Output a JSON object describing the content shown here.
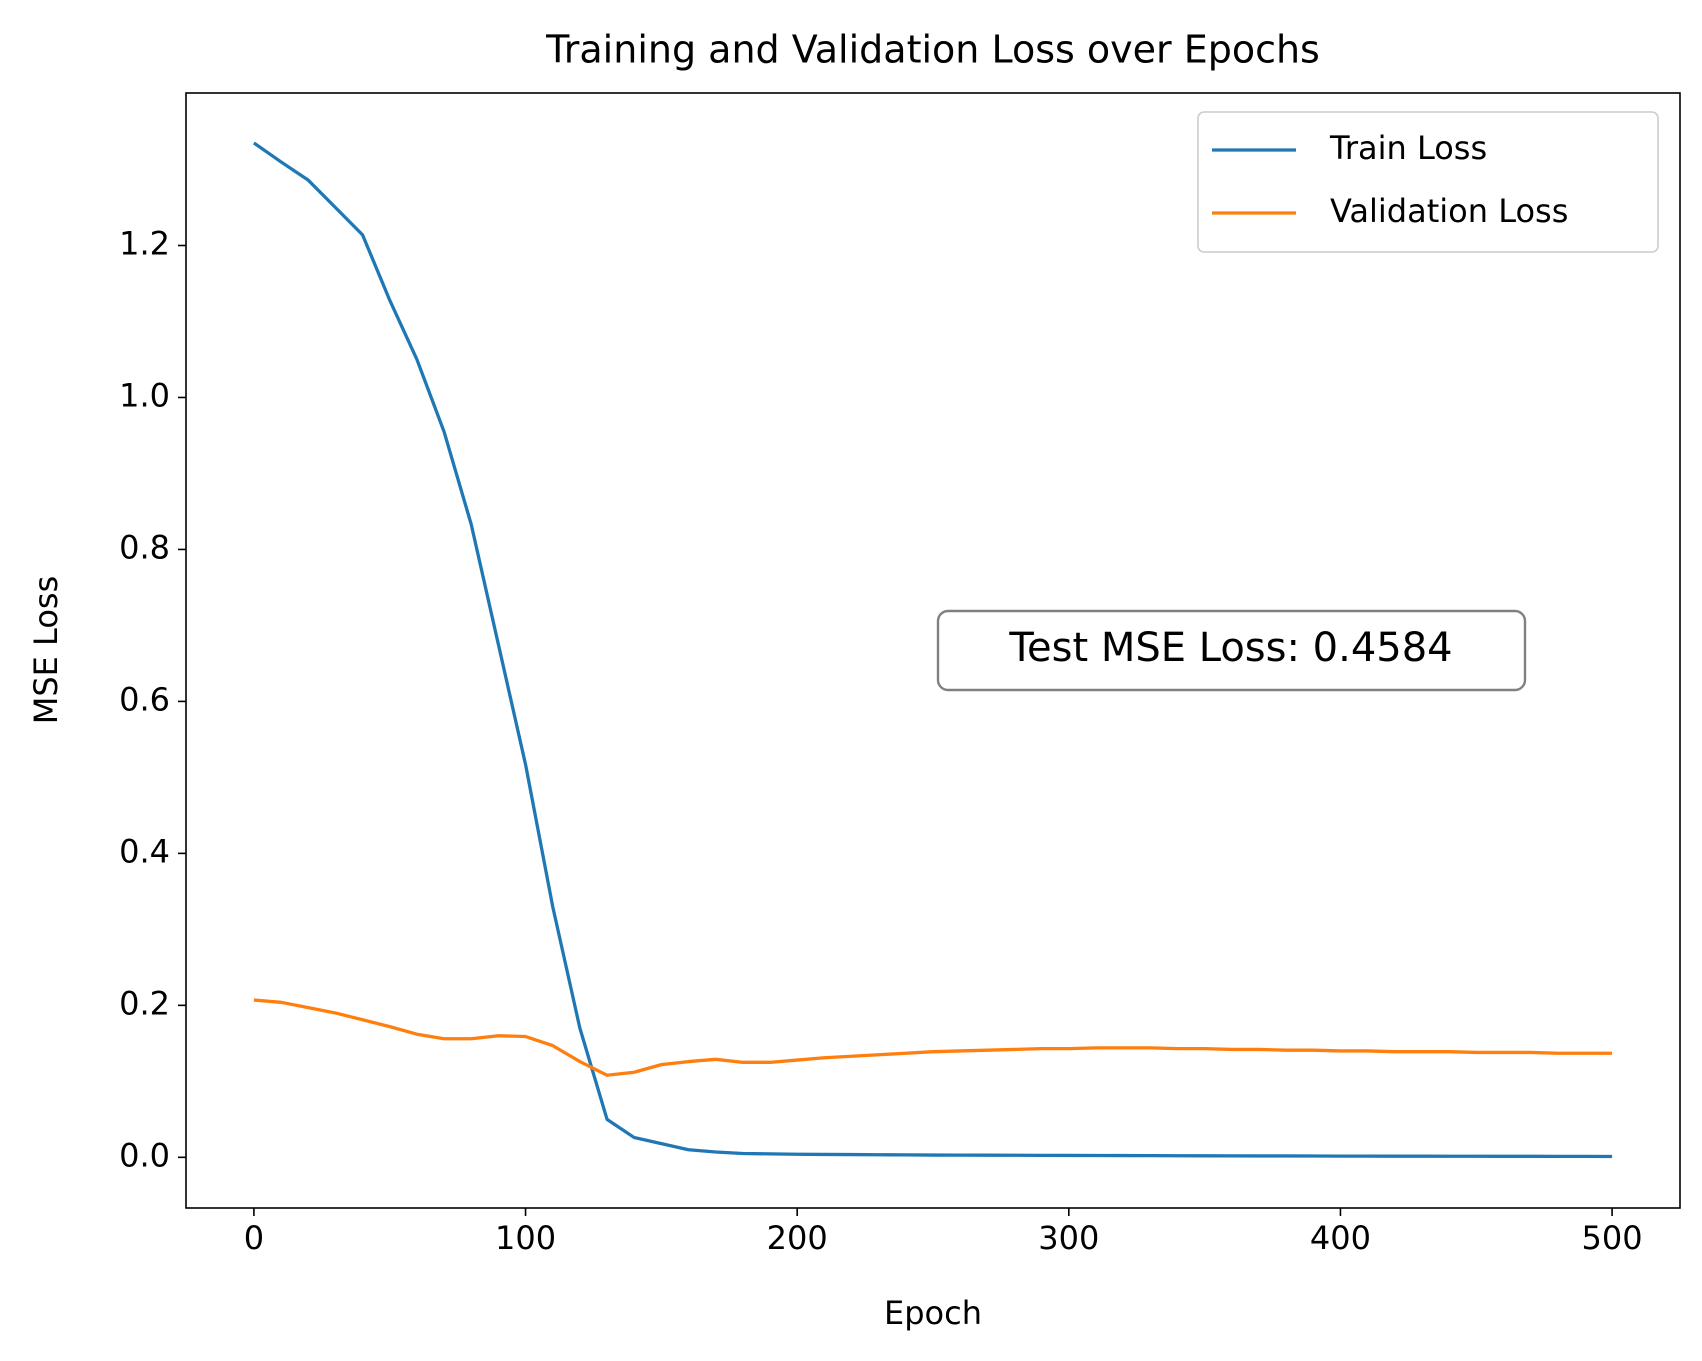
{
  "chart_data": {
    "type": "line",
    "title": "Training and Validation Loss over Epochs",
    "x_label": "Epoch",
    "y_label": "MSE Loss",
    "annotation": "Test MSE Loss: 0.4584",
    "x": [
      0,
      10,
      20,
      30,
      40,
      50,
      60,
      70,
      80,
      90,
      100,
      110,
      120,
      130,
      140,
      150,
      160,
      170,
      180,
      190,
      200,
      210,
      220,
      230,
      240,
      250,
      260,
      270,
      280,
      290,
      300,
      310,
      320,
      330,
      340,
      350,
      360,
      370,
      380,
      390,
      400,
      410,
      420,
      430,
      440,
      450,
      460,
      470,
      480,
      490,
      500
    ],
    "series": [
      {
        "name": "Train Loss",
        "color": "#1f77b4",
        "values": [
          1.335,
          1.31,
          1.286,
          1.25,
          1.214,
          1.128,
          1.05,
          0.955,
          0.833,
          0.675,
          0.517,
          0.33,
          0.17,
          0.05,
          0.026,
          0.018,
          0.01,
          0.007,
          0.005,
          0.0045,
          0.004,
          0.0038,
          0.0036,
          0.0034,
          0.0032,
          0.003,
          0.0029,
          0.0028,
          0.0027,
          0.0026,
          0.0025,
          0.0024,
          0.0023,
          0.0022,
          0.0021,
          0.002,
          0.0019,
          0.0018,
          0.0018,
          0.0017,
          0.0016,
          0.0016,
          0.0015,
          0.0015,
          0.0014,
          0.0014,
          0.0013,
          0.0013,
          0.0012,
          0.0012,
          0.0011
        ]
      },
      {
        "name": "Validation Loss",
        "color": "#ff7f0e",
        "values": [
          0.207,
          0.204,
          0.197,
          0.19,
          0.181,
          0.172,
          0.162,
          0.156,
          0.156,
          0.16,
          0.159,
          0.147,
          0.126,
          0.108,
          0.112,
          0.122,
          0.126,
          0.129,
          0.125,
          0.125,
          0.128,
          0.131,
          0.133,
          0.135,
          0.137,
          0.139,
          0.14,
          0.141,
          0.142,
          0.143,
          0.143,
          0.144,
          0.144,
          0.144,
          0.143,
          0.143,
          0.142,
          0.142,
          0.141,
          0.141,
          0.14,
          0.14,
          0.139,
          0.139,
          0.139,
          0.138,
          0.138,
          0.138,
          0.137,
          0.137,
          0.137
        ]
      }
    ],
    "xlim": [
      -25,
      525
    ],
    "xticks": [
      0,
      100,
      200,
      300,
      400,
      500
    ],
    "ylim": [
      -0.0667,
      1.4007
    ],
    "yticks": [
      {
        "value": 0,
        "label": "0.0"
      },
      {
        "value": 0.2,
        "label": "0.2"
      },
      {
        "value": 0.4,
        "label": "0.4"
      },
      {
        "value": 0.6,
        "label": "0.6"
      },
      {
        "value": 0.8,
        "label": "0.8"
      },
      {
        "value": 1,
        "label": "1.0"
      },
      {
        "value": 1.2,
        "label": "1.2"
      }
    ],
    "legend": "upper right",
    "grid": false
  }
}
